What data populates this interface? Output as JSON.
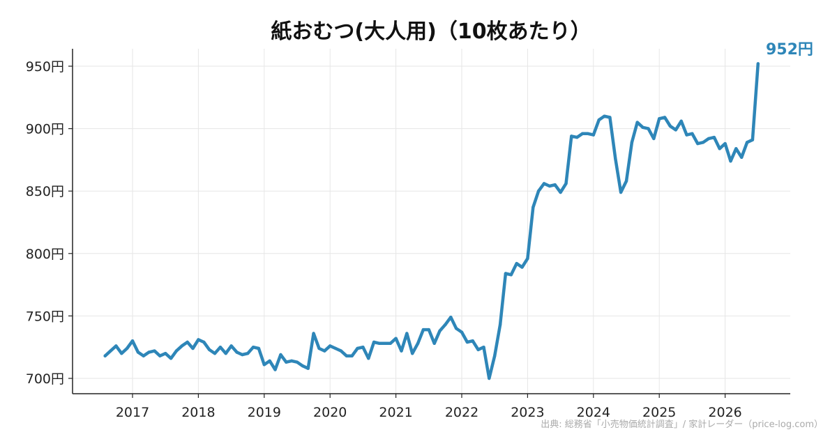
{
  "chart_data": {
    "type": "line",
    "title": "紙おむつ(大人用)（10枚あたり）",
    "xlabel": "",
    "ylabel": "",
    "ylim": [
      688,
      966
    ],
    "y_ticks": [
      700,
      750,
      800,
      850,
      900,
      950
    ],
    "y_tick_labels": [
      "700円",
      "750円",
      "800円",
      "850円",
      "900円",
      "950円"
    ],
    "x_ticks": [
      2017,
      2018,
      2019,
      2020,
      2021,
      2022,
      2023,
      2024,
      2025,
      2026
    ],
    "x_tick_labels": [
      "2017",
      "2018",
      "2019",
      "2020",
      "2021",
      "2022",
      "2023",
      "2024",
      "2025",
      "2026"
    ],
    "grid": true,
    "color": "#2e86b8",
    "end_label": "952円",
    "series": [
      {
        "x": [
          "2016-08",
          "2016-09",
          "2016-10",
          "2016-11",
          "2016-12",
          "2017-01",
          "2017-02",
          "2017-03",
          "2017-04",
          "2017-05",
          "2017-06",
          "2017-07",
          "2017-08",
          "2017-09",
          "2017-10",
          "2017-11",
          "2017-12",
          "2018-01",
          "2018-02",
          "2018-03",
          "2018-04",
          "2018-05",
          "2018-06",
          "2018-07",
          "2018-08",
          "2018-09",
          "2018-10",
          "2018-11",
          "2018-12",
          "2019-01",
          "2019-02",
          "2019-03",
          "2019-04",
          "2019-05",
          "2019-06",
          "2019-07",
          "2019-08",
          "2019-09",
          "2019-10",
          "2019-11",
          "2019-12",
          "2020-01",
          "2020-02",
          "2020-03",
          "2020-04",
          "2020-05",
          "2020-06",
          "2020-07",
          "2020-08",
          "2020-09",
          "2020-10",
          "2020-11",
          "2020-12",
          "2021-01",
          "2021-02",
          "2021-03",
          "2021-04",
          "2021-05",
          "2021-06",
          "2021-07",
          "2021-08",
          "2021-09",
          "2021-10",
          "2021-11",
          "2021-12",
          "2022-01",
          "2022-02",
          "2022-03",
          "2022-04",
          "2022-05",
          "2022-06",
          "2022-07",
          "2022-08",
          "2022-09",
          "2022-10",
          "2022-11",
          "2022-12",
          "2023-01",
          "2023-02",
          "2023-03",
          "2023-04",
          "2023-05",
          "2023-06",
          "2023-07",
          "2023-08",
          "2023-09",
          "2023-10",
          "2023-11",
          "2023-12",
          "2024-01",
          "2024-02",
          "2024-03",
          "2024-04",
          "2024-05",
          "2024-06",
          "2024-07",
          "2024-08",
          "2024-09",
          "2024-10",
          "2024-11",
          "2024-12",
          "2025-01",
          "2025-02",
          "2025-03",
          "2025-04",
          "2025-05",
          "2025-06",
          "2025-07",
          "2025-08",
          "2025-09",
          "2025-10",
          "2025-11",
          "2025-12",
          "2026-01",
          "2026-02",
          "2026-03",
          "2026-04",
          "2026-05",
          "2026-06",
          "2026-07"
        ],
        "values": [
          718,
          722,
          726,
          720,
          724,
          730,
          721,
          718,
          721,
          722,
          718,
          720,
          716,
          722,
          726,
          729,
          724,
          731,
          729,
          723,
          720,
          725,
          720,
          726,
          721,
          719,
          720,
          725,
          724,
          711,
          714,
          707,
          719,
          713,
          714,
          713,
          710,
          708,
          736,
          724,
          722,
          726,
          724,
          722,
          718,
          718,
          724,
          725,
          716,
          729,
          728,
          728,
          728,
          732,
          722,
          736,
          720,
          728,
          739,
          739,
          728,
          738,
          743,
          749,
          740,
          737,
          729,
          730,
          723,
          725,
          700,
          718,
          743,
          784,
          783,
          792,
          789,
          796,
          837,
          850,
          856,
          854,
          855,
          849,
          856,
          894,
          893,
          896,
          896,
          895,
          907,
          910,
          909,
          876,
          849,
          858,
          889,
          905,
          901,
          900,
          892,
          908,
          909,
          902,
          899,
          906,
          895,
          896,
          888,
          889,
          892,
          893,
          884,
          888,
          874,
          884,
          877,
          889,
          891,
          952
        ]
      }
    ],
    "source": "出典: 総務省「小売物価統計調査」/ 家計レーダー（price-log.com）"
  }
}
